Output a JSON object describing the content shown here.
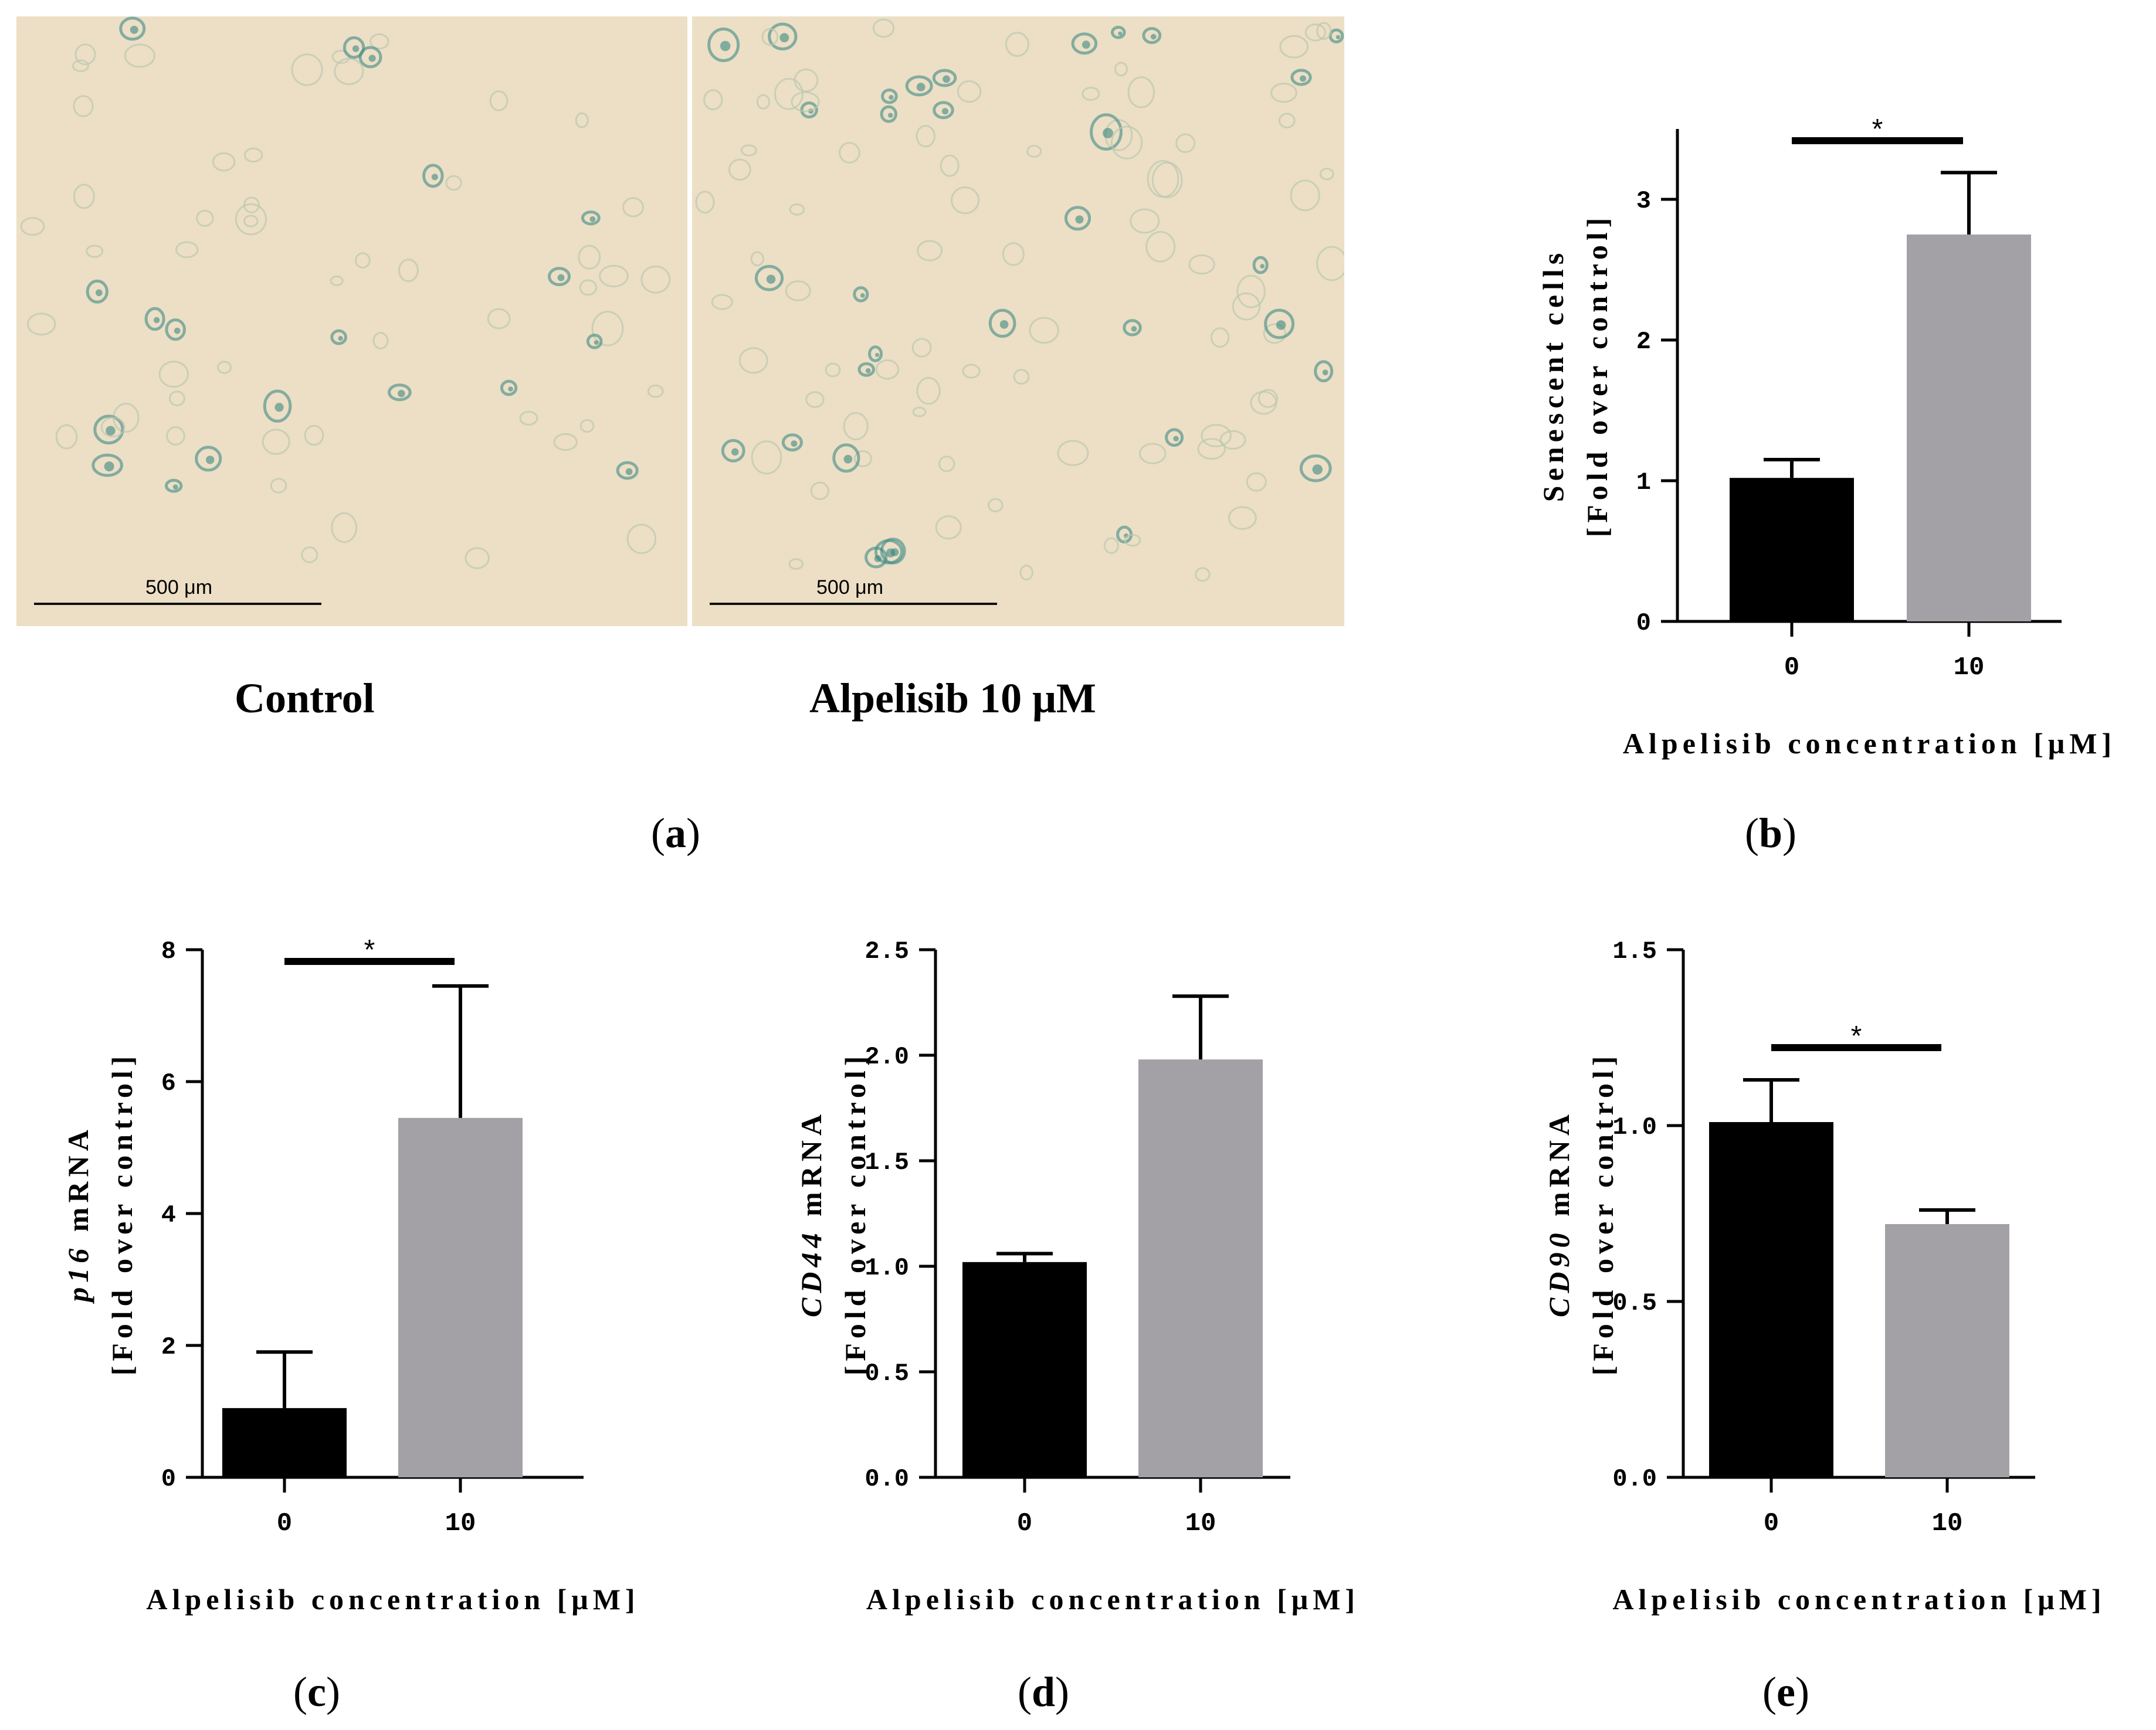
{
  "panel_a": {
    "images": [
      {
        "scale_bar": "500 μm",
        "caption": "Control"
      },
      {
        "scale_bar": "500 μm",
        "caption": "Alpelisib 10 μM"
      }
    ],
    "label": "a"
  },
  "chart_data": [
    {
      "panel": "b",
      "type": "bar",
      "categories": [
        "0",
        "10"
      ],
      "values": [
        1.02,
        2.75
      ],
      "errors": [
        0.13,
        0.44
      ],
      "bar_colors": [
        "#000000",
        "#a3a1a6"
      ],
      "ylabel_parts": [
        "Senescent cells",
        "[Fold over control]"
      ],
      "ylabel_italic": "",
      "xlabel": "Alpelisib concentration [μM]",
      "ylim": [
        0,
        3.5
      ],
      "yticks": [
        "0",
        "1",
        "2",
        "3"
      ],
      "ytick_values": [
        0,
        1,
        2,
        3
      ],
      "significance": "*"
    },
    {
      "panel": "c",
      "type": "bar",
      "categories": [
        "0",
        "10"
      ],
      "values": [
        1.05,
        5.45
      ],
      "errors": [
        0.85,
        2.0
      ],
      "bar_colors": [
        "#000000",
        "#a3a1a6"
      ],
      "ylabel_parts": [
        "mRNA",
        "[Fold over control]"
      ],
      "ylabel_italic": "p16",
      "xlabel": "Alpelisib concentration [μM]",
      "ylim": [
        0,
        8
      ],
      "yticks": [
        "0",
        "2",
        "4",
        "6",
        "8"
      ],
      "ytick_values": [
        0,
        2,
        4,
        6,
        8
      ],
      "significance": "*"
    },
    {
      "panel": "d",
      "type": "bar",
      "categories": [
        "0",
        "10"
      ],
      "values": [
        1.02,
        1.98
      ],
      "errors": [
        0.04,
        0.3
      ],
      "bar_colors": [
        "#000000",
        "#a3a1a6"
      ],
      "ylabel_parts": [
        "mRNA",
        "[Fold over control]"
      ],
      "ylabel_italic": "CD44",
      "xlabel": "Alpelisib concentration [μM]",
      "ylim": [
        0,
        2.5
      ],
      "yticks": [
        "0.0",
        "0.5",
        "1.0",
        "1.5",
        "2.0",
        "2.5"
      ],
      "ytick_values": [
        0,
        0.5,
        1,
        1.5,
        2,
        2.5
      ],
      "significance": ""
    },
    {
      "panel": "e",
      "type": "bar",
      "categories": [
        "0",
        "10"
      ],
      "values": [
        1.01,
        0.72
      ],
      "errors": [
        0.12,
        0.04
      ],
      "bar_colors": [
        "#000000",
        "#a3a1a6"
      ],
      "ylabel_parts": [
        "mRNA",
        "[Fold over control]"
      ],
      "ylabel_italic": "CD90",
      "xlabel": "Alpelisib concentration [μM]",
      "ylim": [
        0,
        1.5
      ],
      "yticks": [
        "0.0",
        "0.5",
        "1.0",
        "1.5"
      ],
      "ytick_values": [
        0,
        0.5,
        1,
        1.5
      ],
      "significance": "*"
    }
  ]
}
